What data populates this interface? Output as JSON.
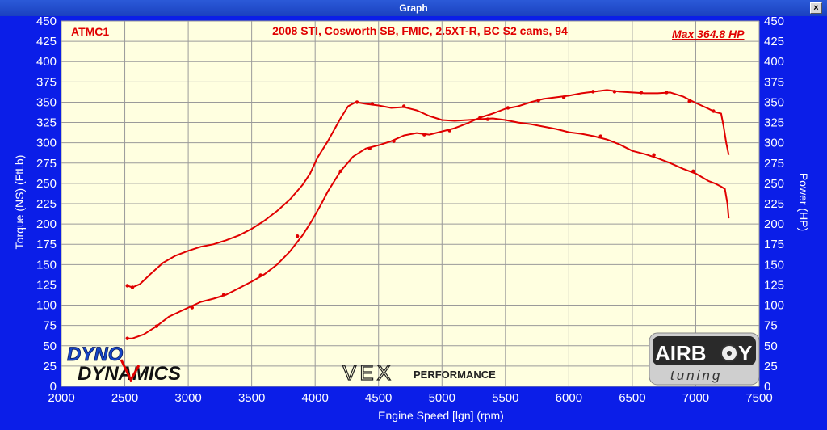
{
  "window": {
    "title": "Graph",
    "close_icon": "x-icon"
  },
  "chart_data": {
    "type": "line",
    "title": "2008 STI, Cosworth SB, FMIC, 2.5XT-R, BC S2 cams, 94",
    "run_label": "ATMC1",
    "max_label": "Max 364.8 HP",
    "xlabel": "Engine Speed [lgn] (rpm)",
    "ylabel_left": "Torque (NS) (FtLb)",
    "ylabel_right": "Power (HP)",
    "xlim": [
      2000,
      7500
    ],
    "ylim": [
      0,
      450
    ],
    "x_ticks": [
      2000,
      2500,
      3000,
      3500,
      4000,
      4500,
      5000,
      5500,
      6000,
      6500,
      7000,
      7500
    ],
    "y_ticks": [
      0,
      25,
      50,
      75,
      100,
      125,
      150,
      175,
      200,
      225,
      250,
      275,
      300,
      325,
      350,
      375,
      400,
      425,
      450
    ],
    "grid": true,
    "line_color": "#e00000",
    "series": [
      {
        "x": [
          2520,
          2560,
          2620,
          2700,
          2800,
          2900,
          3000,
          3100,
          3200,
          3300,
          3400,
          3500,
          3600,
          3700,
          3800,
          3900,
          3960,
          4020,
          4100,
          4200,
          4260,
          4320,
          4400,
          4500,
          4600,
          4700,
          4800,
          4900,
          5000,
          5100,
          5200,
          5300,
          5400,
          5500,
          5600,
          5700,
          5800,
          5900,
          6000,
          6100,
          6200,
          6300,
          6400,
          6500,
          6600,
          6700,
          6800,
          6900,
          7000,
          7100,
          7150,
          7200,
          7230,
          7250,
          7260
        ],
        "y": [
          124,
          122,
          126,
          138,
          152,
          161,
          167,
          172,
          175,
          180,
          186,
          194,
          204,
          216,
          230,
          248,
          262,
          282,
          302,
          330,
          345,
          350,
          348,
          346,
          343,
          344,
          340,
          333,
          328,
          327,
          328,
          329,
          330,
          328,
          325,
          323,
          320,
          317,
          313,
          311,
          308,
          304,
          298,
          290,
          286,
          281,
          275,
          268,
          262,
          253,
          250,
          246,
          243,
          225,
          207
        ]
      },
      {
        "x": [
          2520,
          2560,
          2650,
          2750,
          2850,
          3000,
          3100,
          3200,
          3300,
          3400,
          3500,
          3600,
          3700,
          3800,
          3900,
          3970,
          4050,
          4100,
          4200,
          4300,
          4400,
          4500,
          4600,
          4700,
          4800,
          4900,
          5000,
          5100,
          5200,
          5300,
          5400,
          5500,
          5600,
          5700,
          5800,
          5900,
          6000,
          6100,
          6200,
          6300,
          6400,
          6500,
          6600,
          6700,
          6800,
          6900,
          7000,
          7100,
          7150,
          7200,
          7220,
          7240,
          7260
        ],
        "y": [
          59,
          59,
          64,
          74,
          86,
          97,
          104,
          108,
          113,
          121,
          129,
          138,
          150,
          166,
          186,
          203,
          225,
          240,
          265,
          283,
          293,
          297,
          302,
          309,
          312,
          310,
          314,
          318,
          324,
          331,
          336,
          342,
          345,
          350,
          354,
          356,
          358,
          361,
          363,
          365,
          363,
          362,
          361,
          361,
          362,
          357,
          349,
          342,
          338,
          336,
          320,
          300,
          285
        ]
      }
    ],
    "markers": [
      {
        "x": [
          2520,
          2560,
          4330,
          4450,
          4700,
          5360,
          6250,
          6670,
          6980
        ],
        "y": [
          124,
          122,
          350,
          348,
          345,
          329,
          308,
          285,
          265
        ]
      },
      {
        "x": [
          2520,
          2750,
          3030,
          3280,
          3570,
          3860,
          4200,
          4430,
          4620,
          4860,
          5060,
          5300,
          5520,
          5760,
          5960,
          6190,
          6360,
          6570,
          6770,
          6950,
          7140
        ],
        "y": [
          59,
          74,
          97,
          113,
          137,
          185,
          265,
          293,
          302,
          310,
          315,
          331,
          343,
          352,
          356,
          363,
          363,
          362,
          362,
          351,
          339
        ]
      }
    ]
  },
  "logos": {
    "dyno_top": "DYNO",
    "dyno_bottom": "DYNAMICS",
    "vex_main": "VEX",
    "vex_sub": "PERFORMANCE",
    "airboy_main": "AIRB",
    "airboy_end": "Y",
    "airboy_sub": "tuning"
  }
}
